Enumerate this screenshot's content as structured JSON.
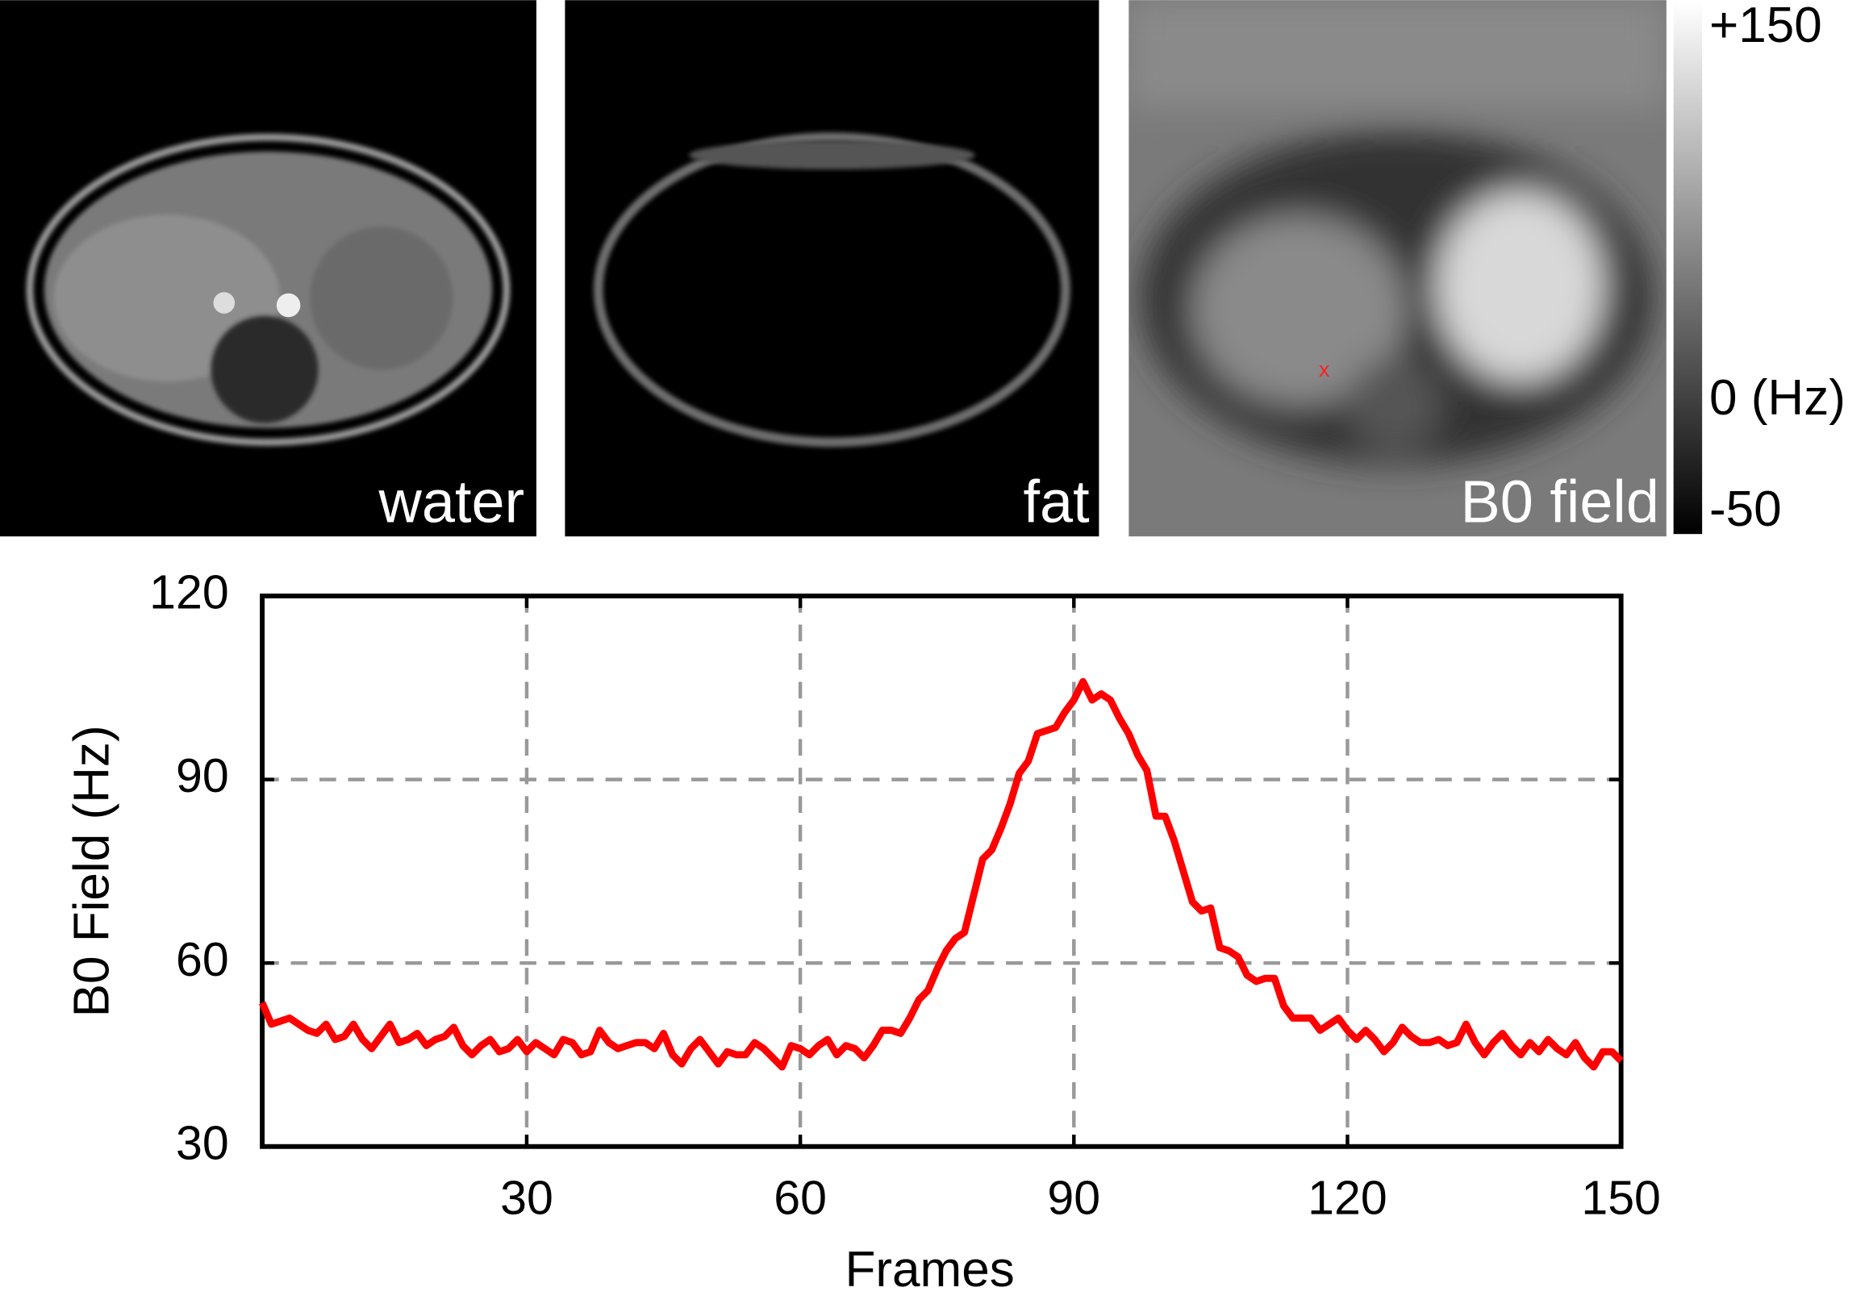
{
  "panels": [
    {
      "label": "water"
    },
    {
      "label": "fat"
    },
    {
      "label": "B0 field"
    }
  ],
  "colorbar": {
    "lim": [
      -50,
      150
    ],
    "ticks": [
      {
        "value": 150,
        "label": "+150"
      },
      {
        "value": 0,
        "label": "0 (Hz)"
      },
      -50
    ]
  },
  "chart_data": {
    "type": "line",
    "xlabel": "Frames",
    "ylabel": "B0 Field (Hz)",
    "x": [
      1,
      2,
      3,
      4,
      5,
      6,
      7,
      8,
      9,
      10,
      11,
      12,
      13,
      14,
      15,
      16,
      17,
      18,
      19,
      20,
      21,
      22,
      23,
      24,
      25,
      26,
      27,
      28,
      29,
      30,
      31,
      32,
      33,
      34,
      35,
      36,
      37,
      38,
      39,
      40,
      41,
      42,
      43,
      44,
      45,
      46,
      47,
      48,
      49,
      50,
      51,
      52,
      53,
      54,
      55,
      56,
      57,
      58,
      59,
      60,
      61,
      62,
      63,
      64,
      65,
      66,
      67,
      68,
      69,
      70,
      71,
      72,
      73,
      74,
      75,
      76,
      77,
      78,
      79,
      80,
      81,
      82,
      83,
      84,
      85,
      86,
      87,
      88,
      89,
      90,
      91,
      92,
      93,
      94,
      95,
      96,
      97,
      98,
      99,
      100,
      101,
      102,
      103,
      104,
      105,
      106,
      107,
      108,
      109,
      110,
      111,
      112,
      113,
      114,
      115,
      116,
      117,
      118,
      119,
      120,
      121,
      122,
      123,
      124,
      125,
      126,
      127,
      128,
      129,
      130,
      131,
      132,
      133,
      134,
      135,
      136,
      137,
      138,
      139,
      140,
      141,
      142,
      143,
      144,
      145,
      146,
      147,
      148,
      149,
      150
    ],
    "series": [
      {
        "color": "#ff0000",
        "values": [
          53.5,
          50,
          50.5,
          51,
          50,
          49,
          48.5,
          50,
          47.5,
          48,
          50,
          47.5,
          46,
          48,
          50,
          47,
          47.5,
          48.5,
          46.5,
          47.5,
          48,
          49.5,
          46.5,
          45,
          46.5,
          47.5,
          45.5,
          46,
          47.5,
          45.5,
          47,
          46,
          45,
          47.5,
          47,
          45,
          45.5,
          49,
          47,
          46,
          46.5,
          47,
          47,
          46,
          48.5,
          45,
          43.5,
          46,
          47.5,
          45.5,
          43.5,
          45.5,
          45,
          45,
          47,
          46,
          44.5,
          43,
          46.5,
          46,
          45,
          46.5,
          47.5,
          45,
          46.5,
          46,
          44.5,
          46.5,
          49,
          49,
          48.5,
          51,
          54,
          55.5,
          59,
          62,
          64,
          65,
          71,
          77,
          78.5,
          82,
          86,
          91,
          93,
          97.5,
          98,
          98.5,
          101,
          103,
          106,
          103,
          104,
          103,
          100,
          97.5,
          94,
          91.5,
          84,
          84,
          80,
          75,
          70,
          68.5,
          69,
          62.5,
          62,
          61,
          58,
          57,
          57.5,
          57.5,
          53,
          51,
          51,
          51,
          49,
          50,
          51,
          49,
          47.5,
          49,
          47.5,
          45.5,
          47,
          49.5,
          48,
          47,
          47,
          47.5,
          46.5,
          47,
          50,
          47,
          45,
          47,
          48.5,
          46.5,
          45,
          47,
          45.5,
          47.5,
          46,
          45,
          47,
          44.5,
          43,
          45.5,
          45.5,
          44
        ]
      }
    ],
    "xlim": [
      1,
      150
    ],
    "ylim": [
      30,
      120
    ],
    "xticks": [
      30,
      60,
      90,
      120,
      150
    ],
    "yticks": [
      30,
      60,
      90,
      120
    ],
    "grid": true
  }
}
